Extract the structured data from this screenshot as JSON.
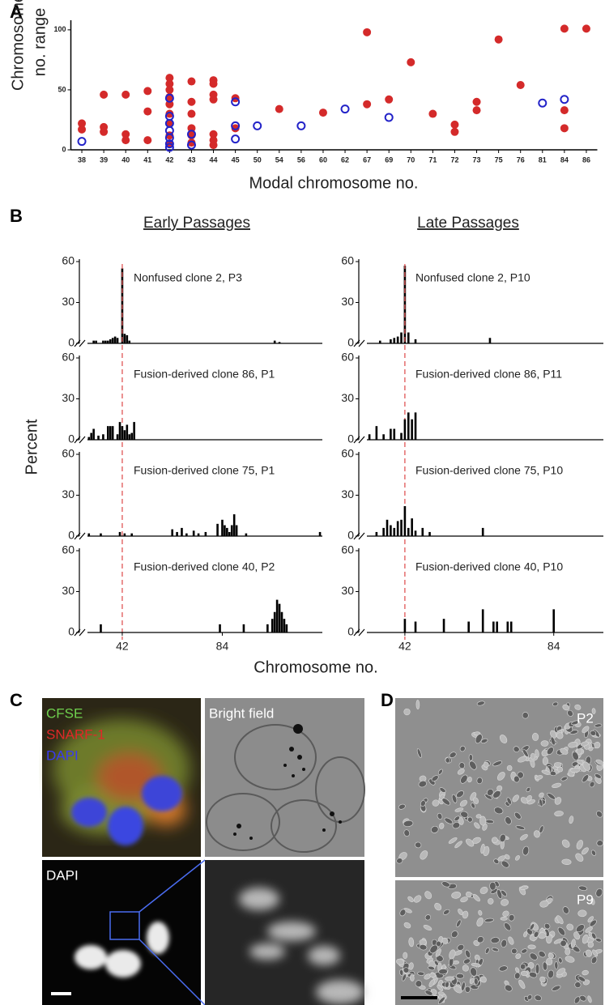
{
  "panel_labels": [
    "A",
    "B",
    "C",
    "D"
  ],
  "chart_data": [
    {
      "type": "scatter",
      "ylabel": [
        "Chromosome",
        "no. range"
      ],
      "xlabel": "Modal chromosome no.",
      "categories": [
        38,
        39,
        40,
        41,
        42,
        43,
        44,
        45,
        50,
        54,
        56,
        60,
        62,
        67,
        69,
        70,
        71,
        72,
        73,
        75,
        76,
        81,
        84,
        86
      ],
      "ylim": [
        0,
        108
      ],
      "yticks": [
        0,
        50,
        100
      ],
      "series": [
        {
          "color": "#d42a2a",
          "marker": "filled",
          "x": [
            38,
            38,
            39,
            39,
            39,
            40,
            40,
            40,
            41,
            41,
            41,
            42,
            42,
            42,
            42,
            42,
            42,
            42,
            42,
            42,
            43,
            43,
            43,
            43,
            43,
            43,
            44,
            44,
            44,
            44,
            44,
            44,
            44,
            45,
            45,
            54,
            60,
            67,
            67,
            69,
            70,
            71,
            72,
            72,
            73,
            73,
            75,
            76,
            84,
            84,
            84,
            86
          ],
          "values": [
            22,
            17,
            46,
            19,
            15,
            46,
            13,
            8,
            49,
            32,
            8,
            60,
            55,
            50,
            44,
            38,
            30,
            22,
            12,
            5,
            57,
            40,
            30,
            18,
            12,
            6,
            58,
            55,
            46,
            42,
            13,
            8,
            4,
            43,
            18,
            34,
            31,
            98,
            38,
            42,
            73,
            30,
            21,
            15,
            40,
            33,
            92,
            54,
            101,
            33,
            18,
            101
          ]
        },
        {
          "color": "#2323c8",
          "marker": "open",
          "x": [
            38,
            42,
            42,
            42,
            42,
            42,
            42,
            42,
            43,
            43,
            45,
            45,
            45,
            50,
            56,
            62,
            69,
            81,
            84
          ],
          "values": [
            7,
            43,
            28,
            22,
            16,
            10,
            5,
            2,
            13,
            4,
            40,
            20,
            9,
            20,
            20,
            34,
            27,
            39,
            42
          ]
        }
      ]
    },
    {
      "type": "bar",
      "title": "Nonfused clone 2, P3",
      "color": "#000000",
      "xlim": [
        24,
        126
      ],
      "ylim": [
        0,
        60
      ],
      "yticks": [
        0,
        30,
        60
      ],
      "x": [
        30,
        31,
        34,
        35,
        36,
        37,
        38,
        39,
        40,
        42,
        43,
        44,
        45,
        106,
        108
      ],
      "values": [
        2,
        2,
        2,
        2,
        2,
        3,
        4,
        5,
        4,
        55,
        7,
        6,
        2,
        2,
        1
      ]
    },
    {
      "type": "bar",
      "title": "Nonfused clone 2, P10",
      "color": "#000000",
      "xlim": [
        29,
        98
      ],
      "ylim": [
        0,
        60
      ],
      "yticks": [
        0,
        30,
        60
      ],
      "x": [
        35,
        38,
        39,
        40,
        41,
        42,
        43,
        45,
        66
      ],
      "values": [
        2,
        3,
        4,
        5,
        8,
        57,
        8,
        3,
        4
      ]
    },
    {
      "type": "bar",
      "title": "Fusion-derived clone 86, P1",
      "color": "#000000",
      "xlim": [
        24,
        126
      ],
      "ylim": [
        0,
        60
      ],
      "yticks": [
        0,
        30,
        60
      ],
      "x": [
        28,
        29,
        30,
        32,
        34,
        36,
        37,
        38,
        40,
        41,
        42,
        43,
        44,
        45,
        46,
        47
      ],
      "values": [
        2,
        5,
        8,
        3,
        4,
        10,
        10,
        10,
        4,
        13,
        10,
        7,
        11,
        4,
        5,
        13
      ]
    },
    {
      "type": "bar",
      "title": "Fusion-derived clone 86, P11",
      "color": "#000000",
      "xlim": [
        29,
        98
      ],
      "ylim": [
        0,
        60
      ],
      "yticks": [
        0,
        30,
        60
      ],
      "x": [
        32,
        34,
        36,
        38,
        39,
        41,
        42,
        43,
        44,
        45
      ],
      "values": [
        4,
        10,
        4,
        8,
        8,
        5,
        15,
        20,
        15,
        20
      ]
    },
    {
      "type": "bar",
      "title": "Fusion-derived clone 75, P1",
      "color": "#000000",
      "xlim": [
        24,
        126
      ],
      "ylim": [
        0,
        60
      ],
      "yticks": [
        0,
        30,
        60
      ],
      "x": [
        28,
        33,
        41,
        43,
        46,
        63,
        65,
        67,
        69,
        72,
        74,
        77,
        82,
        84,
        85,
        86,
        87,
        88,
        89,
        90,
        94,
        125
      ],
      "values": [
        2,
        2,
        3,
        2,
        2,
        5,
        3,
        6,
        2,
        4,
        2,
        3,
        9,
        12,
        8,
        6,
        3,
        8,
        16,
        8,
        2,
        3
      ]
    },
    {
      "type": "bar",
      "title": "Fusion-derived clone 75, P10",
      "color": "#000000",
      "xlim": [
        29,
        98
      ],
      "ylim": [
        0,
        60
      ],
      "yticks": [
        0,
        30,
        60
      ],
      "x": [
        34,
        36,
        37,
        38,
        39,
        40,
        41,
        42,
        43,
        44,
        45,
        47,
        49,
        64
      ],
      "values": [
        3,
        6,
        12,
        8,
        6,
        11,
        12,
        22,
        6,
        13,
        4,
        6,
        3,
        6
      ]
    },
    {
      "type": "bar",
      "title": "Fusion-derived clone 40, P2",
      "color": "#000000",
      "xlim": [
        24,
        126
      ],
      "ylim": [
        0,
        60
      ],
      "yticks": [
        0,
        30,
        60
      ],
      "xticks": [
        42,
        84
      ],
      "x": [
        33,
        83,
        93,
        103,
        105,
        106,
        107,
        108,
        109,
        110,
        111
      ],
      "values": [
        6,
        6,
        6,
        6,
        10,
        15,
        24,
        21,
        15,
        10,
        6
      ]
    },
    {
      "type": "bar",
      "title": "Fusion-derived clone 40, P10",
      "color": "#000000",
      "xlim": [
        29,
        98
      ],
      "ylim": [
        0,
        60
      ],
      "yticks": [
        0,
        30,
        60
      ],
      "xticks": [
        42,
        84
      ],
      "x": [
        42,
        45,
        53,
        60,
        64,
        67,
        68,
        71,
        72,
        84
      ],
      "values": [
        10,
        8,
        10,
        8,
        17,
        8,
        8,
        8,
        8,
        17
      ]
    }
  ],
  "panel_b": {
    "headers": [
      "Early Passages",
      "Late Passages"
    ],
    "ylabel": "Percent",
    "xlabel": "Chromosome no.",
    "ref_x": 42,
    "ref_color": "#e05555"
  },
  "panel_c": {
    "stains": [
      "CFSE",
      "SNARF-1",
      "DAPI"
    ],
    "bright_field": "Bright field",
    "dapi": "DAPI"
  },
  "panel_d": {
    "passages": [
      "P2",
      "P9"
    ]
  }
}
